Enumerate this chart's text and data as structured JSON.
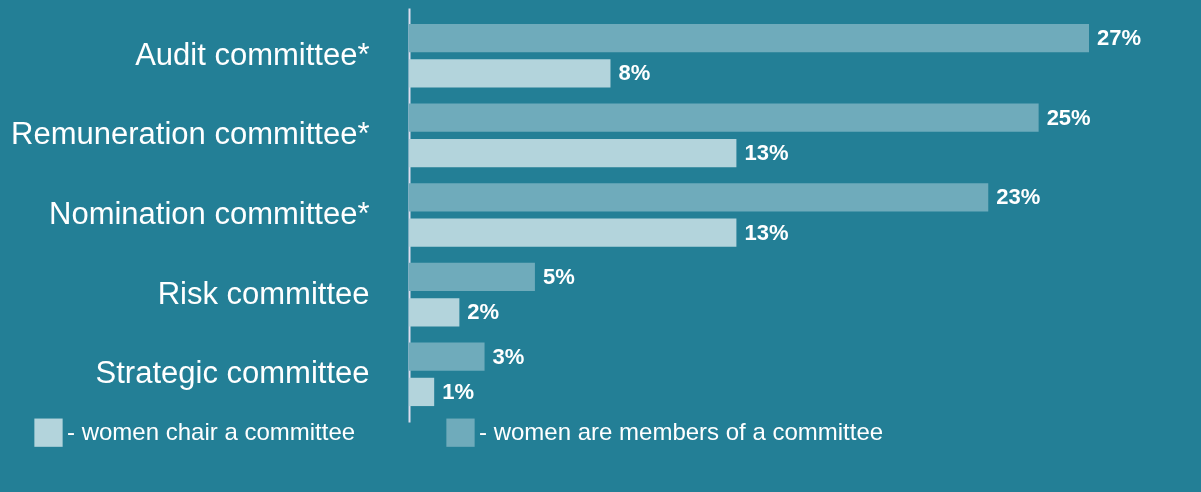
{
  "chart_data": {
    "type": "bar",
    "orientation": "horizontal",
    "categories": [
      "Audit committee*",
      "Remuneration committee*",
      "Nomination committee*",
      "Risk committee",
      "Strategic committee"
    ],
    "series": [
      {
        "name": "- women chair a committee",
        "color": "#b3d4dc",
        "values": [
          8,
          13,
          13,
          2,
          1
        ],
        "value_labels": [
          "8%",
          "13%",
          "13%",
          "2%",
          "1%"
        ]
      },
      {
        "name": "- women are members of a committee",
        "color": "#6fabbb",
        "values": [
          27,
          25,
          23,
          5,
          3
        ],
        "value_labels": [
          "27%",
          "25%",
          "23%",
          "5%",
          "3%"
        ]
      }
    ],
    "legend": "bottom",
    "grid": false
  }
}
